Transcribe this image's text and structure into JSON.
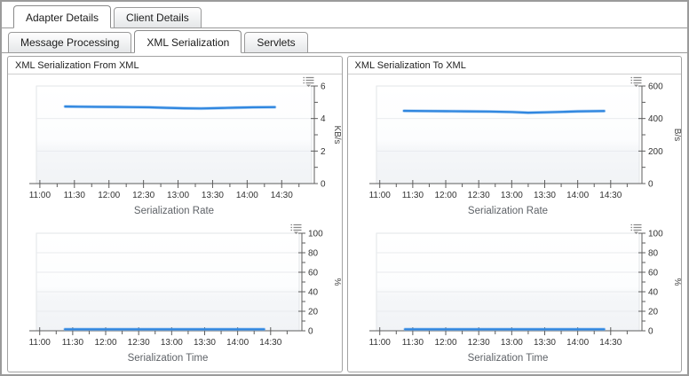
{
  "tabs_row1": [
    {
      "label": "Adapter Details",
      "active": true
    },
    {
      "label": "Client Details",
      "active": false
    }
  ],
  "tabs_row2": [
    {
      "label": "Message Processing",
      "active": false
    },
    {
      "label": "XML Serialization",
      "active": true
    },
    {
      "label": "Servlets",
      "active": false
    }
  ],
  "panels": [
    {
      "title": "XML Serialization From XML"
    },
    {
      "title": "XML Serialization To XML"
    }
  ],
  "colors": {
    "line": "#2f86df",
    "line_halo": "#7fb6ef",
    "axis": "#5c5c5c",
    "grid": "#e9ebee",
    "plot_border": "#e2e4e7",
    "tick_label": "#333333",
    "title": "#5f6368",
    "unit": "#444444",
    "icon": "#8a8a8a",
    "plot_bg_top": "#ffffff",
    "plot_bg_bottom": "#f1f3f6"
  },
  "chart_data": [
    {
      "type": "line",
      "panel": 0,
      "title": "Serialization Rate",
      "unit": "KB/s",
      "ylim": [
        0,
        6
      ],
      "yticks": [
        0,
        2,
        4,
        6
      ],
      "yminors": [
        1,
        3,
        5
      ],
      "xlim": [
        "10:57",
        "14:56"
      ],
      "xticks": [
        "11:00",
        "11:30",
        "12:00",
        "12:30",
        "13:00",
        "13:30",
        "14:00",
        "14:30"
      ],
      "xminor_step_min": 15,
      "grid": true,
      "legend": "none",
      "series": [
        {
          "name": "serialization-rate-from-xml",
          "x": [
            "11:22",
            "11:35",
            "11:50",
            "12:05",
            "12:20",
            "12:35",
            "12:50",
            "13:05",
            "13:20",
            "13:35",
            "13:50",
            "14:05",
            "14:24"
          ],
          "y": [
            4.74,
            4.73,
            4.72,
            4.71,
            4.7,
            4.69,
            4.66,
            4.63,
            4.62,
            4.64,
            4.67,
            4.69,
            4.7
          ]
        }
      ]
    },
    {
      "type": "line",
      "panel": 0,
      "title": "Serialization Time",
      "unit": "%",
      "ylim": [
        0,
        100
      ],
      "yticks": [
        0,
        20,
        40,
        60,
        80,
        100
      ],
      "yminors": [
        10,
        30,
        50,
        70,
        90
      ],
      "xlim": [
        "10:57",
        "14:56"
      ],
      "xticks": [
        "11:00",
        "11:30",
        "12:00",
        "12:30",
        "13:00",
        "13:30",
        "14:00",
        "14:30"
      ],
      "xminor_step_min": 15,
      "grid": true,
      "legend": "none",
      "series": [
        {
          "name": "serialization-time-from-xml",
          "x": [
            "11:23",
            "11:45",
            "12:15",
            "12:45",
            "13:15",
            "13:45",
            "14:10",
            "14:24"
          ],
          "y": [
            1.5,
            1.5,
            1.5,
            1.5,
            1.5,
            1.5,
            1.5,
            1.5
          ]
        }
      ]
    },
    {
      "type": "line",
      "panel": 1,
      "title": "Serialization Rate",
      "unit": "B/s",
      "ylim": [
        0,
        600
      ],
      "yticks": [
        0,
        200,
        400,
        600
      ],
      "yminors": [
        100,
        300,
        500
      ],
      "xlim": [
        "10:57",
        "14:56"
      ],
      "xticks": [
        "11:00",
        "11:30",
        "12:00",
        "12:30",
        "13:00",
        "13:30",
        "14:00",
        "14:30"
      ],
      "xminor_step_min": 15,
      "grid": true,
      "legend": "none",
      "series": [
        {
          "name": "serialization-rate-to-xml",
          "x": [
            "11:22",
            "11:40",
            "12:00",
            "12:20",
            "12:40",
            "13:00",
            "13:15",
            "13:30",
            "13:45",
            "14:00",
            "14:24"
          ],
          "y": [
            447,
            446,
            445,
            444,
            443,
            440,
            436,
            438,
            441,
            444,
            446
          ]
        }
      ]
    },
    {
      "type": "line",
      "panel": 1,
      "title": "Serialization Time",
      "unit": "%",
      "ylim": [
        0,
        100
      ],
      "yticks": [
        0,
        20,
        40,
        60,
        80,
        100
      ],
      "yminors": [
        10,
        30,
        50,
        70,
        90
      ],
      "xlim": [
        "10:57",
        "14:56"
      ],
      "xticks": [
        "11:00",
        "11:30",
        "12:00",
        "12:30",
        "13:00",
        "13:30",
        "14:00",
        "14:30"
      ],
      "xminor_step_min": 15,
      "grid": true,
      "legend": "none",
      "series": [
        {
          "name": "serialization-time-to-xml",
          "x": [
            "11:23",
            "11:45",
            "12:15",
            "12:45",
            "13:15",
            "13:45",
            "14:10",
            "14:24"
          ],
          "y": [
            1.5,
            1.5,
            1.5,
            1.5,
            1.5,
            1.5,
            1.5,
            1.5
          ]
        }
      ]
    }
  ]
}
